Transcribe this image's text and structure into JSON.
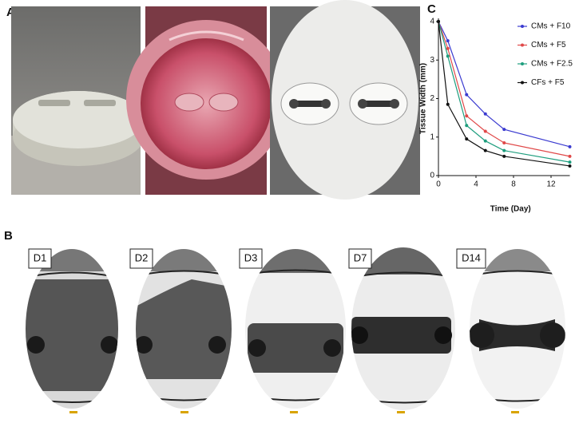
{
  "panel_labels": {
    "a": "A",
    "b": "B",
    "c": "C"
  },
  "day_labels": [
    "D1",
    "D2",
    "D3",
    "D7",
    "D14"
  ],
  "chart_data": {
    "type": "line",
    "xlabel": "Time (Day)",
    "ylabel": "Tissue Width (mm)",
    "x": [
      0,
      1,
      3,
      5,
      7,
      14
    ],
    "xlim": [
      0,
      14
    ],
    "xticks": [
      0,
      4,
      8,
      12
    ],
    "ylim": [
      0,
      4
    ],
    "yticks": [
      0,
      1,
      2,
      3,
      4
    ],
    "legend": "upper right",
    "series": [
      {
        "name": "CMs + F10",
        "color": "#3b3bd0",
        "values": [
          4,
          3.5,
          2.1,
          1.6,
          1.2,
          0.75
        ]
      },
      {
        "name": "CMs + F5",
        "color": "#e04848",
        "values": [
          4,
          3.3,
          1.55,
          1.15,
          0.85,
          0.5
        ]
      },
      {
        "name": "CMs + F2.5",
        "color": "#1e9e7e",
        "values": [
          4,
          3.1,
          1.3,
          0.9,
          0.65,
          0.35
        ]
      },
      {
        "name": "CFs + F5",
        "color": "#111111",
        "values": [
          4,
          1.85,
          0.95,
          0.65,
          0.5,
          0.25
        ]
      }
    ]
  }
}
